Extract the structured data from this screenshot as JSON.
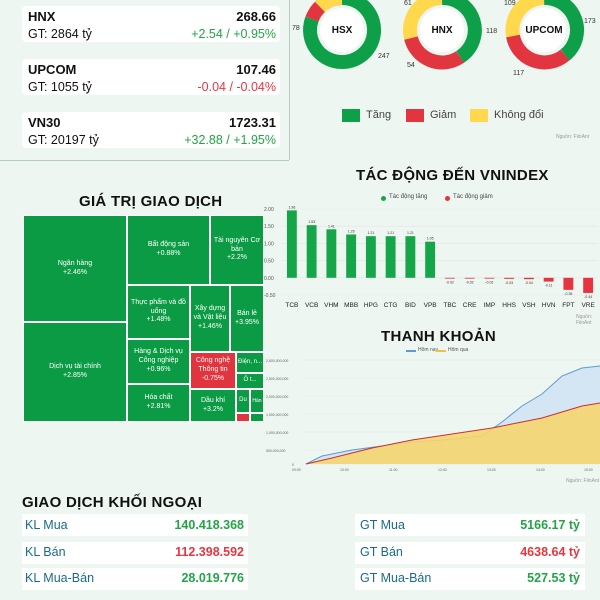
{
  "indices": [
    {
      "name": "HNX",
      "price": "268.66",
      "gt": "GT: 2864 tỷ",
      "change": "+2.54 / +0.95%",
      "dir": "up"
    },
    {
      "name": "UPCOM",
      "price": "107.46",
      "gt": "GT: 1055 tỷ",
      "change": "-0.04 / -0.04%",
      "dir": "down"
    },
    {
      "name": "VN30",
      "price": "1723.31",
      "gt": "GT: 20197 tỷ",
      "change": "+32.88 / +1.95%",
      "dir": "up"
    }
  ],
  "breadth": {
    "hsx": {
      "label": "HSX",
      "left": "78",
      "right": "247"
    },
    "hnx": {
      "label": "HNX",
      "top": "61",
      "right": "118",
      "bottom": "54"
    },
    "upcom": {
      "label": "UPCOM",
      "top": "109",
      "right": "173",
      "bottom": "117"
    },
    "legend": {
      "up": "Tăng",
      "down": "Giảm",
      "flat": "Không đổi"
    },
    "source": "Nguồn: FiinAnt",
    "colors": {
      "up": "#0e9f49",
      "down": "#e1353f",
      "flat": "#ffd84e"
    }
  },
  "impact": {
    "title": "TÁC ĐỘNG ĐẾN VNINDEX",
    "legend_up": "Tác động tăng",
    "legend_down": "Tác động giảm",
    "source": "Nguồn: FiinAnt"
  },
  "liquidity": {
    "title": "THANH KHOẢN",
    "legend_today": "Hôm nay",
    "legend_prev": "Hôm qua",
    "yticks": [
      "2,800,000,000",
      "2,500,000,000",
      "2,000,000,000",
      "1,500,000,000",
      "1,000,000,000",
      "500,000,000",
      "0"
    ],
    "xticks": [
      "09:00",
      "10:00",
      "11:00",
      "12:00",
      "13:00",
      "14:00",
      "15:00"
    ],
    "source": "Nguồn: FiinAnt"
  },
  "treemap": {
    "title": "GIÁ TRỊ GIAO DỊCH",
    "cells": [
      {
        "name": "Ngân hàng",
        "value": "+2.46%",
        "color": "green"
      },
      {
        "name": "Dịch vụ tài chính",
        "value": "+2.85%",
        "color": "green"
      },
      {
        "name": "Bất động sản",
        "value": "+0.88%",
        "color": "green"
      },
      {
        "name": "Tài nguyên Cơ bản",
        "value": "+2.2%",
        "color": "green"
      },
      {
        "name": "Thực phẩm và đồ uống",
        "value": "+1.48%",
        "color": "green"
      },
      {
        "name": "Xây dựng và Vật liệu",
        "value": "+1.46%",
        "color": "green"
      },
      {
        "name": "Bán lẻ",
        "value": "+3.95%",
        "color": "green"
      },
      {
        "name": "Hàng & Dịch vụ Công nghiệp",
        "value": "+0.96%",
        "color": "green"
      },
      {
        "name": "Công nghệ Thông tin",
        "value": "-0.75%",
        "color": "red"
      },
      {
        "name": "Điện, n...",
        "value": "",
        "color": "green"
      },
      {
        "name": "Ô t...",
        "value": "",
        "color": "green"
      },
      {
        "name": "Hóa chất",
        "value": "+2.81%",
        "color": "green"
      },
      {
        "name": "Dầu khí",
        "value": "+3.2%",
        "color": "green"
      },
      {
        "name": "Du",
        "value": "",
        "color": "green"
      },
      {
        "name": "Hàn",
        "value": "",
        "color": "green"
      }
    ]
  },
  "chart_data": {
    "type": "bar",
    "title": "TÁC ĐỘNG ĐẾN VNINDEX",
    "categories": [
      "TCB",
      "VCB",
      "VHM",
      "MBB",
      "HPG",
      "CTG",
      "BID",
      "VPB",
      "TBC",
      "CRE",
      "IMP",
      "HHS",
      "VSH",
      "HVN",
      "FPT",
      "VRE"
    ],
    "values": [
      1.96,
      1.53,
      1.41,
      1.26,
      1.21,
      1.21,
      1.21,
      1.05,
      -0.02,
      -0.02,
      -0.02,
      -0.03,
      -0.04,
      -0.11,
      -0.35,
      -0.44
    ],
    "ylim": [
      -0.5,
      2.0
    ],
    "yticks": [
      "2.00",
      "1.50",
      "1.00",
      "0.50",
      "0.00",
      "-0.50"
    ],
    "legend": [
      "Tác động tăng",
      "Tác động giảm"
    ],
    "colors": {
      "up": "#16a64a",
      "down": "#e5343f"
    }
  },
  "foreign": {
    "title": "GIAO DỊCH KHỐI NGOẠI",
    "rows": [
      {
        "l1": "KL Mua",
        "v1": "140.418.368",
        "c1": "up",
        "l2": "GT Mua",
        "v2": "5166.17 tỷ",
        "c2": "up"
      },
      {
        "l1": "KL Bán",
        "v1": "112.398.592",
        "c1": "down",
        "l2": "GT Bán",
        "v2": "4638.64 tỷ",
        "c2": "down"
      },
      {
        "l1": "KL Mua-Bán",
        "v1": "28.019.776",
        "c1": "up",
        "l2": "GT Mua-Bán",
        "v2": "527.53 tỷ",
        "c2": "up"
      }
    ]
  }
}
